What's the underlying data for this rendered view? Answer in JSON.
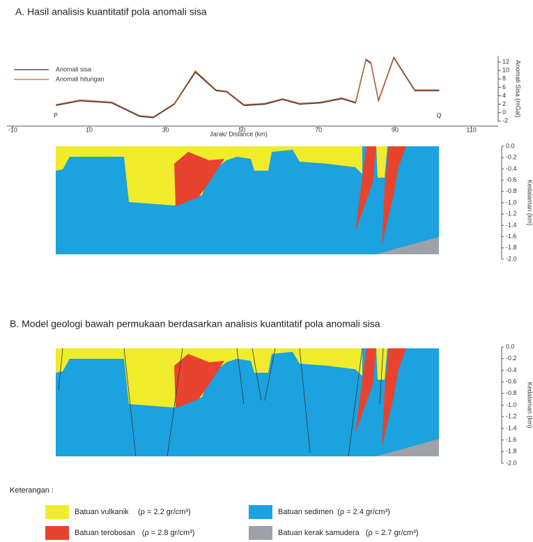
{
  "chart_data": {
    "type": "line",
    "title": "A. Hasil analisis kuantitatif pola anomali sisa",
    "xlabel": "Jarak/ Distance (km)",
    "ylabel": "Anomali Sisa (mGal)",
    "x": [
      1.3,
      7.7,
      15.9,
      23.2,
      26.8,
      32.3,
      37.8,
      43.2,
      46.0,
      50.5,
      56.0,
      60.6,
      65.1,
      70.6,
      76.1,
      79.7,
      82.4,
      83.7,
      85.7,
      89.7,
      95.2,
      101.6
    ],
    "series": [
      {
        "name": "Anomali sisa",
        "color": "#2b2b3a",
        "values": [
          1.7,
          2.8,
          2.3,
          -0.9,
          -1.2,
          2.0,
          9.6,
          5.2,
          4.9,
          1.7,
          2.0,
          3.1,
          2.0,
          2.3,
          3.3,
          2.3,
          12.5,
          11.7,
          2.8,
          13.0,
          5.2,
          5.2
        ]
      },
      {
        "name": "Anomali hitungan",
        "color": "#c8642a",
        "values": [
          1.9,
          3.0,
          2.5,
          -0.7,
          -1.0,
          2.2,
          9.9,
          5.4,
          5.1,
          1.9,
          2.2,
          3.3,
          2.2,
          2.5,
          3.5,
          2.5,
          12.7,
          11.9,
          3.0,
          13.2,
          5.4,
          5.4
        ]
      }
    ],
    "xlim": [
      -11.5,
      117
    ],
    "ylim": [
      -2.2,
      13.5
    ],
    "xticks": [
      -10,
      10,
      30,
      50,
      70,
      90,
      110
    ],
    "yticks": [
      -2,
      0,
      2,
      4,
      6,
      8,
      10,
      12
    ],
    "annotations": [
      "P",
      "Q"
    ]
  },
  "section_a": {
    "ylabel": "Kedalaman (km)",
    "yticks": [
      {
        "value": 0,
        "label": "0.0"
      },
      -0.2,
      -0.4,
      -0.6,
      -0.8,
      {
        "value": -1,
        "label": "-1.0"
      },
      -1.2,
      -1.4,
      -1.6,
      -1.8,
      {
        "value": -2,
        "label": "-2.0"
      }
    ]
  },
  "section_b": {
    "title": "B. Model geologi bawah permukaan berdasarkan analisis kuantitatif pola anomali sisa",
    "ylabel": "Kedalaman (km)",
    "yticks": [
      {
        "value": 0,
        "label": "0.0"
      },
      -0.2,
      -0.4,
      -0.6,
      -0.8,
      {
        "value": -1,
        "label": "-1.0"
      },
      -1.2,
      -1.4,
      -1.6,
      -1.8,
      {
        "value": -2,
        "label": "-2.0"
      }
    ]
  },
  "legend": {
    "title": "Keterangan :",
    "items": [
      {
        "label": "Batuan vulkanik",
        "density": "(ρ = 2.2 gr/cm³)",
        "color": "#f0ec2c"
      },
      {
        "label": "Batuan sedimen",
        "density": "(ρ = 2.4 gr/cm³)",
        "color": "#1ba2df"
      },
      {
        "label": "Batuan terobosan",
        "density": "(ρ = 2.8 gr/cm³)",
        "color": "#e8432e"
      },
      {
        "label": "Batuan kerak samudera",
        "density": "(ρ = 2.7 gr/cm³)",
        "color": "#9ea2a8"
      }
    ]
  }
}
